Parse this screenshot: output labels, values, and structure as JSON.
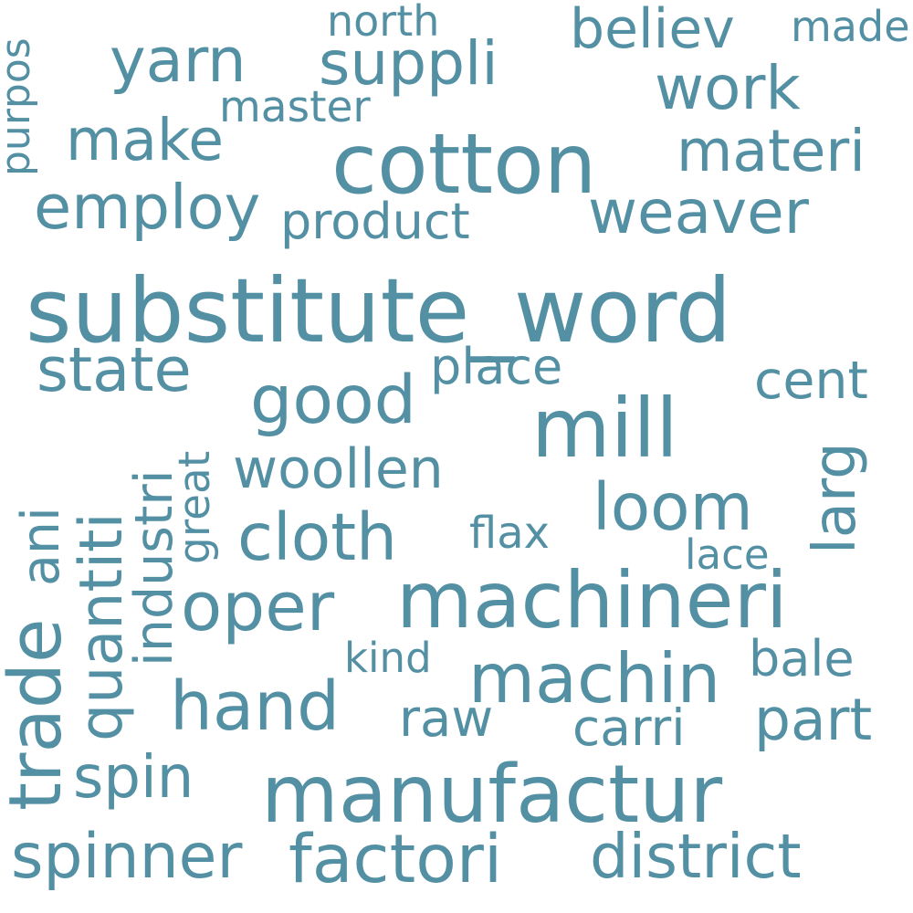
{
  "style": {
    "word_color": "#5490a3",
    "background": "#ffffff"
  },
  "words": {
    "substitute_word": "substitute_word",
    "cotton": "cotton",
    "machineri": "machineri",
    "manufactur": "manufactur",
    "mill": "mill",
    "weaver": "weaver",
    "suppli": "suppli",
    "yarn": "yarn",
    "work": "work",
    "believ": "believ",
    "made": "made",
    "north": "north",
    "master": "master",
    "make": "make",
    "materi": "materi",
    "employ": "employ",
    "product": "product",
    "state": "state",
    "place": "place",
    "good": "good",
    "cent": "cent",
    "woollen": "woollen",
    "loom": "loom",
    "cloth": "cloth",
    "flax": "flax",
    "lace": "lace",
    "larg": "larg",
    "oper": "oper",
    "machin": "machin",
    "kind": "kind",
    "bale": "bale",
    "hand": "hand",
    "raw": "raw",
    "carri": "carri",
    "part": "part",
    "spin": "spin",
    "spinner": "spinner",
    "factori": "factori",
    "district": "district",
    "purpos": "purpos",
    "trade": "trade",
    "ani": "ani",
    "quantiti": "quantiti",
    "industri": "industri",
    "great": "great"
  }
}
